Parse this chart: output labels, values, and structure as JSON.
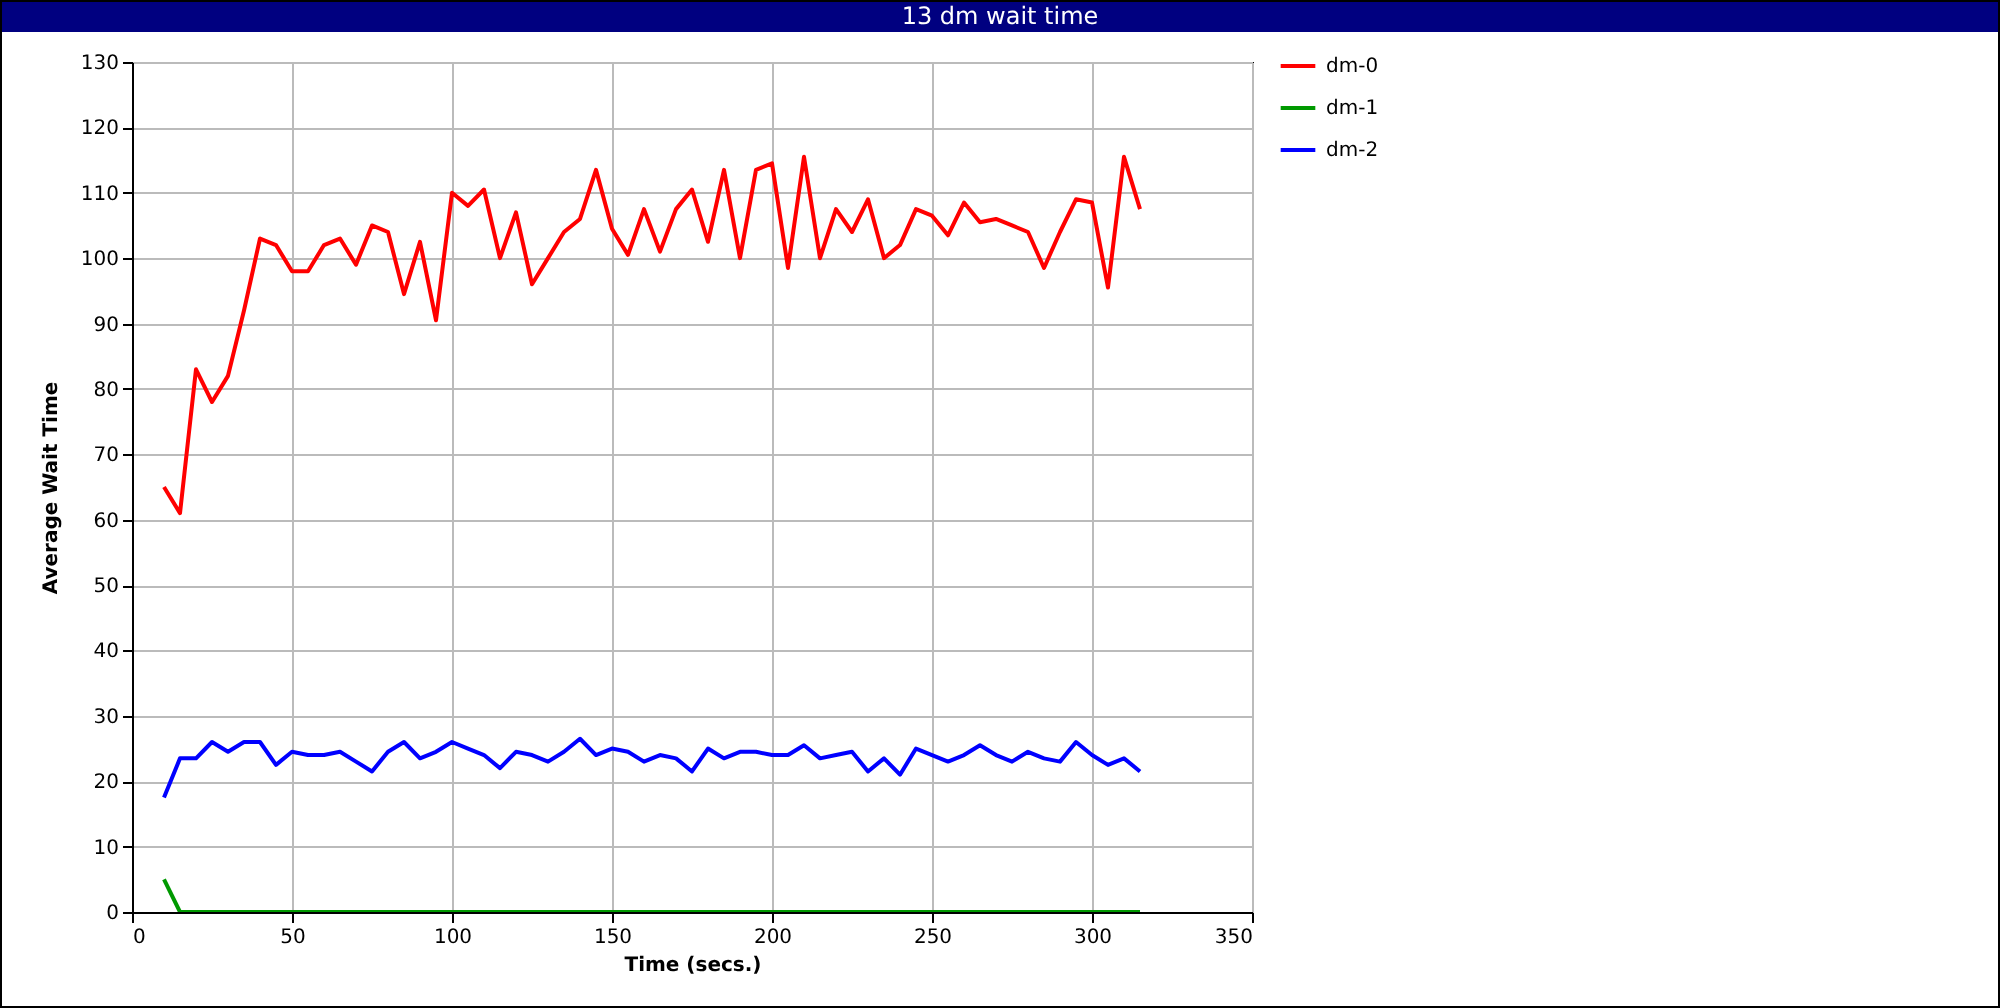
{
  "chart_data": {
    "type": "line",
    "title": "13 dm wait time",
    "xlabel": "Time (secs.)",
    "ylabel": "Average Wait Time",
    "x": [
      10,
      15,
      20,
      25,
      30,
      35,
      40,
      45,
      50,
      55,
      60,
      65,
      70,
      75,
      80,
      85,
      90,
      95,
      100,
      105,
      110,
      115,
      120,
      125,
      130,
      135,
      140,
      145,
      150,
      155,
      160,
      165,
      170,
      175,
      180,
      185,
      190,
      195,
      200,
      205,
      210,
      215,
      220,
      225,
      230,
      235,
      240,
      245,
      250,
      255,
      260,
      265,
      270,
      275,
      280,
      285,
      290,
      295,
      300,
      305,
      310,
      315
    ],
    "series": [
      {
        "name": "dm-0",
        "color": "#ff0000",
        "values": [
          65,
          61,
          83,
          78,
          82,
          92,
          103,
          102,
          98,
          98,
          102,
          103,
          99,
          105,
          104,
          94.5,
          102.5,
          90.5,
          110,
          108,
          110.5,
          100,
          107,
          96,
          100,
          104,
          106,
          113.5,
          104.5,
          100.5,
          107.5,
          101,
          107.5,
          110.5,
          102.5,
          113.5,
          100,
          113.5,
          114.5,
          98.5,
          115.5,
          100,
          107.5,
          104,
          109,
          100,
          102,
          107.5,
          106.5,
          103.5,
          108.5,
          105.5,
          106,
          105,
          104,
          98.5,
          104,
          109,
          108.5,
          95.5,
          115.5,
          107.5
        ]
      },
      {
        "name": "dm-1",
        "color": "#009900",
        "values": [
          5,
          0,
          0,
          0,
          0,
          0,
          0,
          0,
          0,
          0,
          0,
          0,
          0,
          0,
          0,
          0,
          0,
          0,
          0,
          0,
          0,
          0,
          0,
          0,
          0,
          0,
          0,
          0,
          0,
          0,
          0,
          0,
          0,
          0,
          0,
          0,
          0,
          0,
          0,
          0,
          0,
          0,
          0,
          0,
          0,
          0,
          0,
          0,
          0,
          0,
          0,
          0,
          0,
          0,
          0,
          0,
          0,
          0,
          0,
          0,
          0,
          0
        ]
      },
      {
        "name": "dm-2",
        "color": "#0000ff",
        "values": [
          17.5,
          23.5,
          23.5,
          26,
          24.5,
          26,
          26,
          22.5,
          24.5,
          24,
          24,
          24.5,
          23,
          21.5,
          24.5,
          26,
          23.5,
          24.5,
          26,
          25,
          24,
          22,
          24.5,
          24,
          23,
          24.5,
          26.5,
          24,
          25,
          24.5,
          23,
          24,
          23.5,
          21.5,
          25,
          23.5,
          24.5,
          24.5,
          24,
          24,
          25.5,
          23.5,
          24,
          24.5,
          21.5,
          23.5,
          21,
          25,
          24,
          23,
          24,
          25.5,
          24,
          23,
          24.5,
          23.5,
          23,
          26,
          24,
          22.5,
          23.5,
          21.5
        ]
      }
    ],
    "xlim": [
      0,
      350
    ],
    "xticks": [
      0,
      50,
      100,
      150,
      200,
      250,
      300,
      350
    ],
    "ylim": [
      0,
      130
    ],
    "yticks": [
      0,
      10,
      20,
      30,
      40,
      50,
      60,
      70,
      80,
      90,
      100,
      110,
      120,
      130
    ],
    "grid": true,
    "legend": "right",
    "marker": "none",
    "line_style": "solid"
  }
}
